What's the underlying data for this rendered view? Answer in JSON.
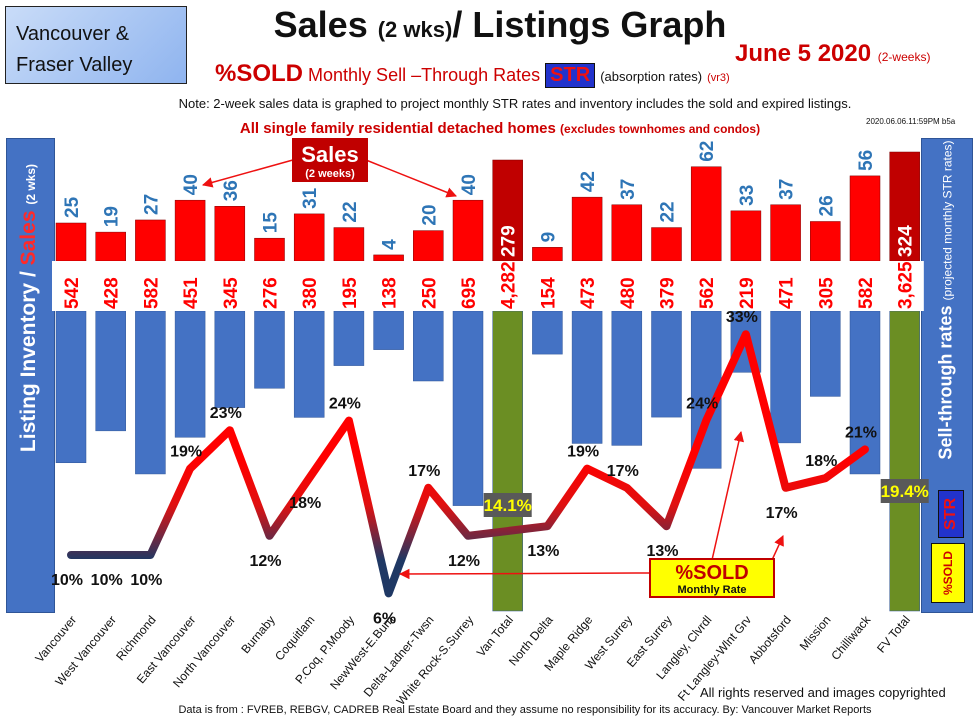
{
  "header": {
    "region_line1": "Vancouver &",
    "region_line2": "Fraser Valley",
    "title_part1": "Sales",
    "title_part2": "(2 wks)",
    "title_part3": "/ Listings Graph",
    "date": "June 5  2020",
    "date_note": "(2-weeks)",
    "subtitle_pct": "%SOLD",
    "subtitle_text": "Monthly Sell –Through Rates",
    "subtitle_badge": "STR",
    "subtitle_abs": "(absorption rates)",
    "subtitle_ver": "(vr3)",
    "note": "Note: 2-week sales data is graphed to project monthly STR rates and inventory includes the sold and expired listings.",
    "timestamp": "2020.06.06.11:59PM b5a",
    "homes_line": "All single family residential detached homes",
    "homes_note": "(excludes townhomes and condos)"
  },
  "side": {
    "left_part1": "Listing Inventory / ",
    "left_part2": "Sales",
    "left_part3": "(2 wks)",
    "right_part1": "Sell-through rates",
    "right_part2": "(projected monthly STR rates)",
    "right_str": "STR",
    "right_sold": "%SOLD"
  },
  "callouts": {
    "sales_title": "Sales",
    "sales_sub": "(2 weeks)",
    "sold_title": "%SOLD",
    "sold_sub": "Monthly Rate"
  },
  "footer": {
    "rights": "All rights reserved and  images copyrighted",
    "source": "Data is from : FVREB, REBGV, CADREB Real Estate Board and they assume no responsibility for its accuracy. By: Vancouver Market Reports"
  },
  "colors": {
    "sales_bar": "#ff0000",
    "sales_total": "#c00000",
    "inventory_bar": "#4472c4",
    "inventory_total": "#6b8e23",
    "sales_label": "#2e75b6",
    "inventory_label": "#ff0000",
    "line_high": "#ff0000",
    "line_low": "#1f3864",
    "panel": "#4472c4"
  },
  "chart_data": {
    "type": "bar",
    "categories": [
      "Vancouver",
      "West Vancouver",
      "Richmond",
      "East Vancouver",
      "North Vancouver",
      "Burnaby",
      "Coquitlam",
      "P.Coq, P.Moody",
      "NewWest-E.Burn",
      "Delta-Ladner-Twsn",
      "White Rock-S.Surrey",
      "Van Total",
      "North Delta",
      "Maple Ridge",
      "West Surrey",
      "East Surrey",
      "Langley, Clvrdl",
      "Ft Langley-Wlnt Grv",
      "Abbotsford",
      "Mission",
      "Chilliwack",
      "FV Total"
    ],
    "series": [
      {
        "values": [
          25,
          19,
          27,
          40,
          36,
          15,
          31,
          22,
          4,
          20,
          40,
          279,
          9,
          42,
          37,
          22,
          62,
          33,
          37,
          26,
          56,
          324
        ]
      },
      {
        "values": [
          "542",
          "428",
          "582",
          "451",
          "345",
          "276",
          "380",
          "195",
          "138",
          "250",
          "695",
          "4,282",
          "154",
          "473",
          "480",
          "379",
          "562",
          "219",
          "471",
          "305",
          "582",
          "3,625"
        ]
      },
      {
        "values": [
          "10%",
          "10%",
          "10%",
          "19%",
          "23%",
          "12%",
          "18%",
          "24%",
          "6%",
          "17%",
          "12%",
          "14.1%",
          "13%",
          "19%",
          "17%",
          "13%",
          "24%",
          "33%",
          "17%",
          "18%",
          "21%",
          "19.4%"
        ]
      }
    ]
  }
}
